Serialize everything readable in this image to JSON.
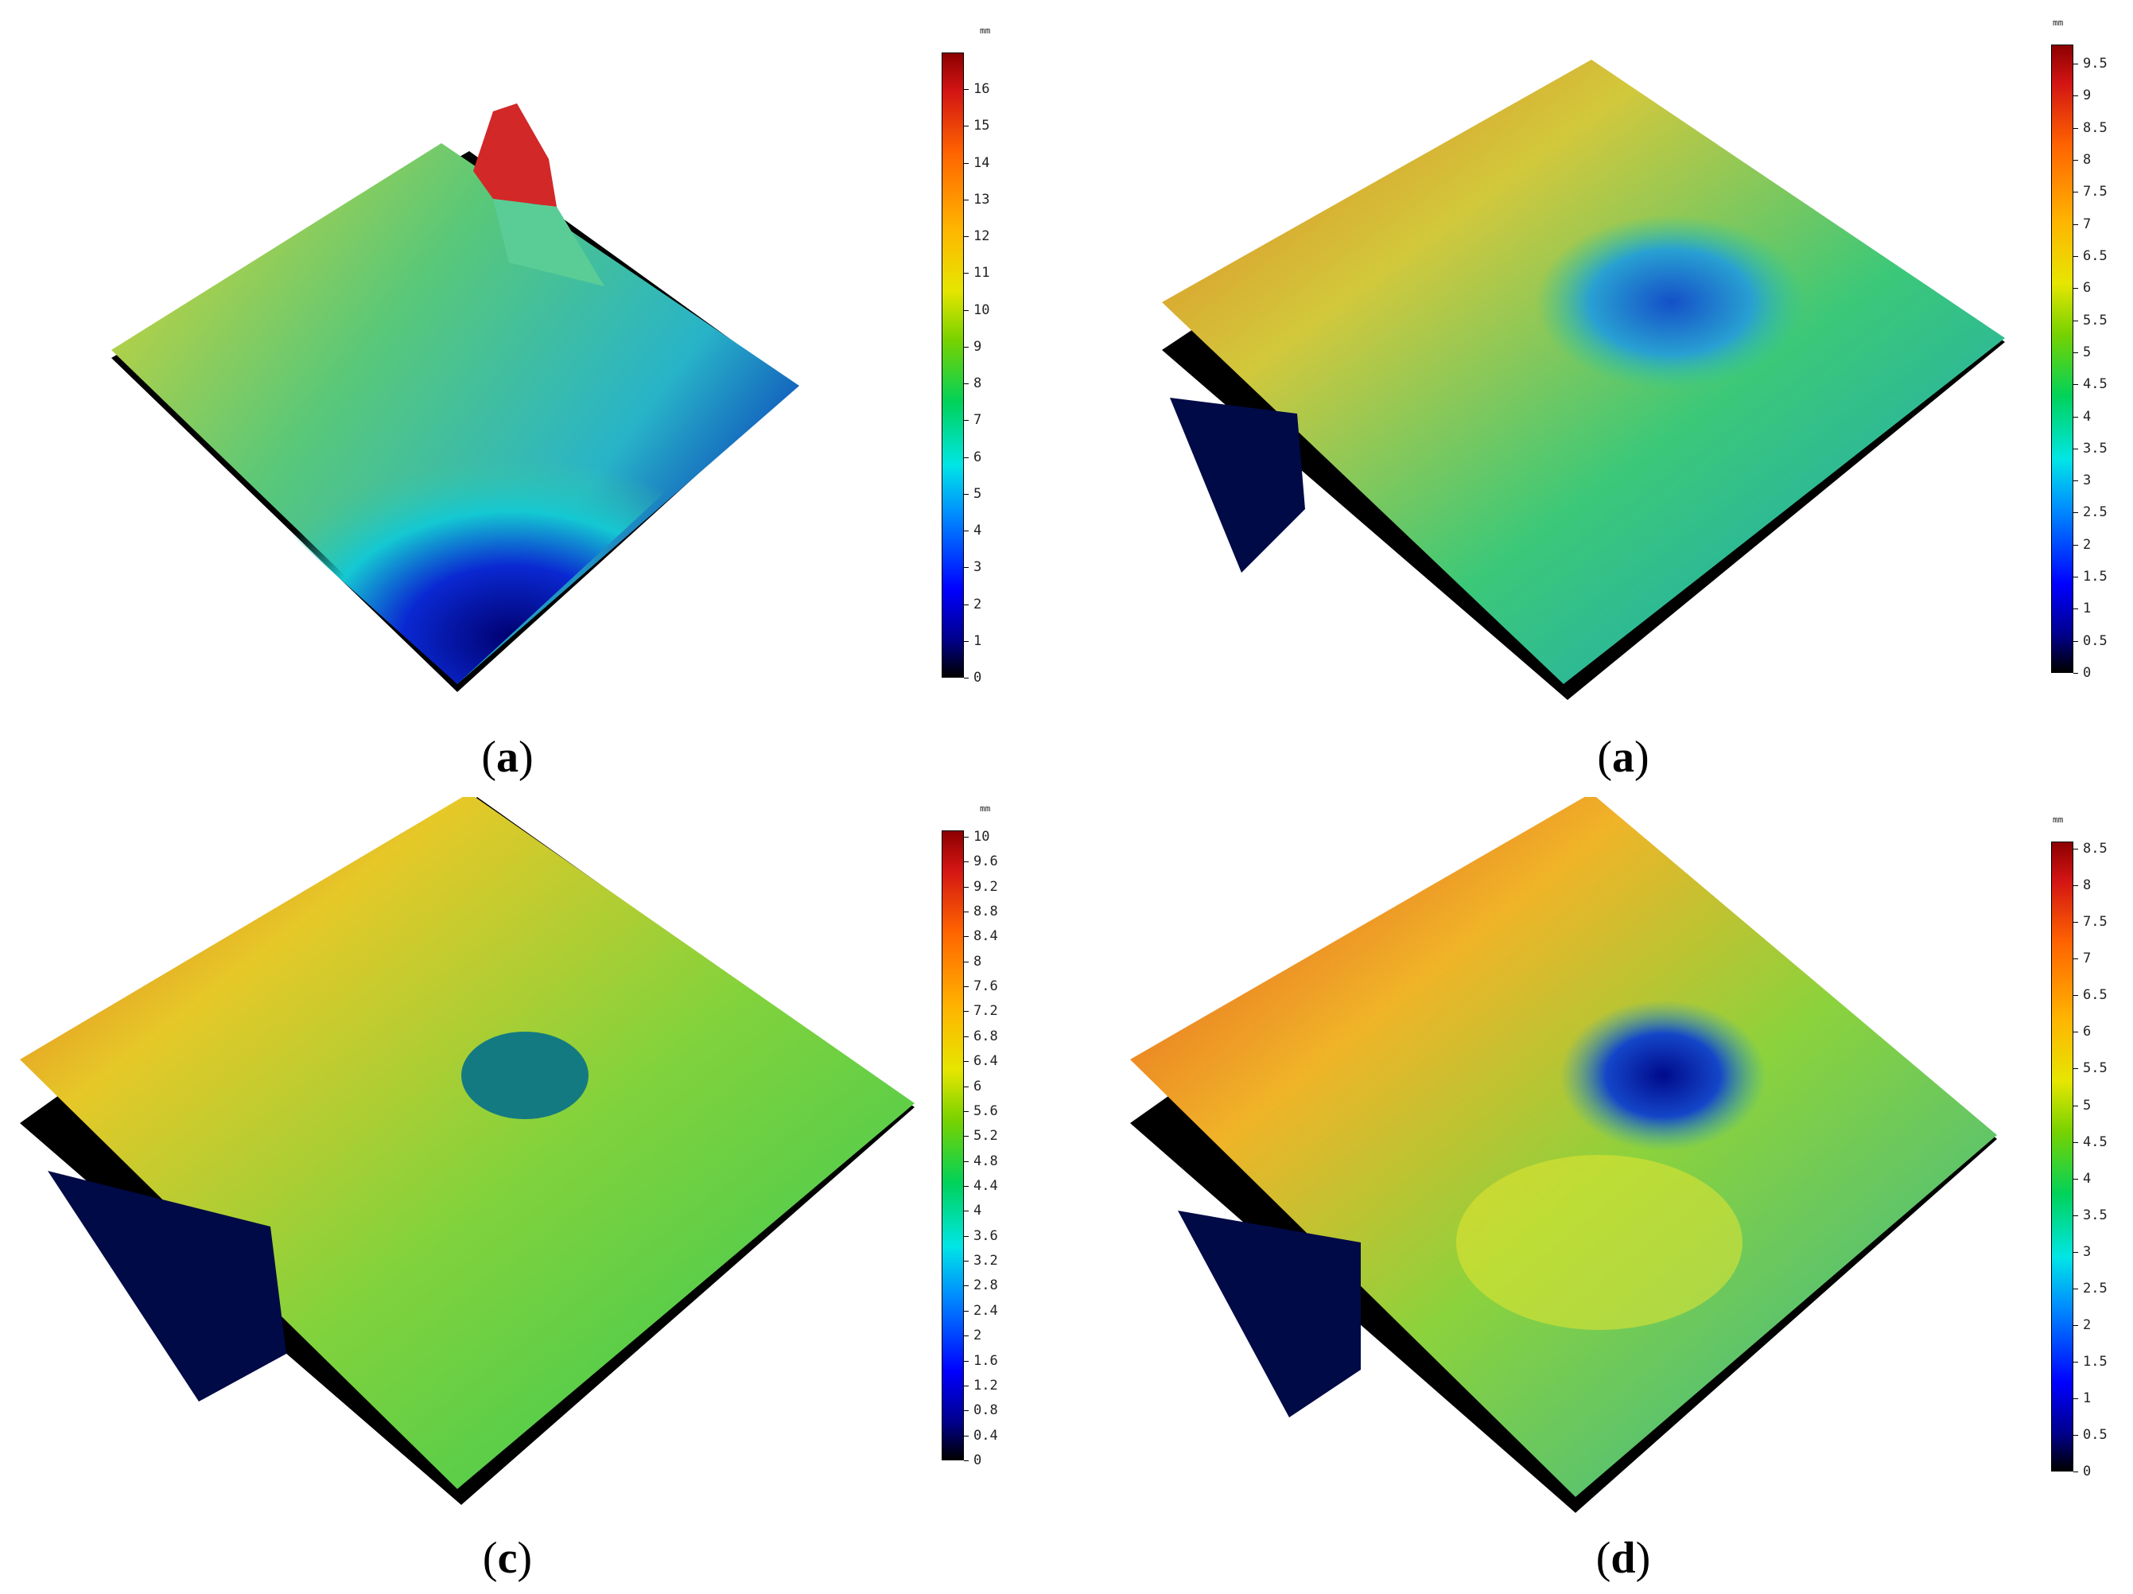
{
  "panels": [
    {
      "caption_letter": "a",
      "unit": "mm",
      "ticks": [
        "0",
        "1",
        "2",
        "3",
        "4",
        "5",
        "6",
        "7",
        "8",
        "9",
        "10",
        "11",
        "12",
        "13",
        "14",
        "15",
        "16"
      ],
      "max": 17,
      "surface_icon": "surface-height-map"
    },
    {
      "caption_letter": "a",
      "unit": "mm",
      "ticks": [
        "0",
        "0.5",
        "1",
        "1.5",
        "2",
        "2.5",
        "3",
        "3.5",
        "4",
        "4.5",
        "5",
        "5.5",
        "6",
        "6.5",
        "7",
        "7.5",
        "8",
        "8.5",
        "9",
        "9.5"
      ],
      "max": 9.8,
      "surface_icon": "surface-height-map"
    },
    {
      "caption_letter": "c",
      "unit": "mm",
      "ticks": [
        "0",
        "0.4",
        "0.8",
        "1.2",
        "1.6",
        "2",
        "2.4",
        "2.8",
        "3.2",
        "3.6",
        "4",
        "4.4",
        "4.8",
        "5.2",
        "5.6",
        "6",
        "6.4",
        "6.8",
        "7.2",
        "7.6",
        "8",
        "8.4",
        "8.8",
        "9.2",
        "9.6",
        "10"
      ],
      "max": 10.1,
      "surface_icon": "surface-height-map"
    },
    {
      "caption_letter": "d",
      "unit": "mm",
      "ticks": [
        "0",
        "0.5",
        "1",
        "1.5",
        "2",
        "2.5",
        "3",
        "3.5",
        "4",
        "4.5",
        "5",
        "5.5",
        "6",
        "6.5",
        "7",
        "7.5",
        "8",
        "8.5"
      ],
      "max": 8.6,
      "surface_icon": "surface-height-map"
    }
  ]
}
